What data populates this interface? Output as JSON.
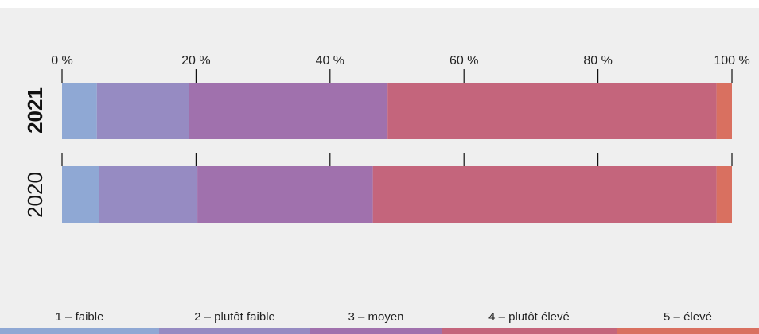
{
  "chart_data": {
    "type": "bar",
    "stacked": true,
    "orientation": "horizontal",
    "categories": [
      "2021",
      "2020"
    ],
    "x_ticks": [
      "0 %",
      "20 %",
      "40 %",
      "60 %",
      "80 %",
      "100 %"
    ],
    "xlim": [
      0,
      100
    ],
    "series": [
      {
        "name": "1 – faible",
        "color": "#8fa8d4",
        "values": [
          5.2,
          5.5
        ]
      },
      {
        "name": "2 – plutôt faible",
        "color": "#968bc2",
        "values": [
          13.8,
          14.7
        ]
      },
      {
        "name": "3 – moyen",
        "color": "#a071ad",
        "values": [
          29.6,
          26.2
        ]
      },
      {
        "name": "4 – plutôt élevé",
        "color": "#c4657c",
        "values": [
          49.1,
          51.3
        ]
      },
      {
        "name": "5 – élevé",
        "color": "#d97060",
        "values": [
          2.3,
          2.3
        ]
      }
    ],
    "bold_category": "2021",
    "legend_position": "bottom",
    "grid": false
  }
}
